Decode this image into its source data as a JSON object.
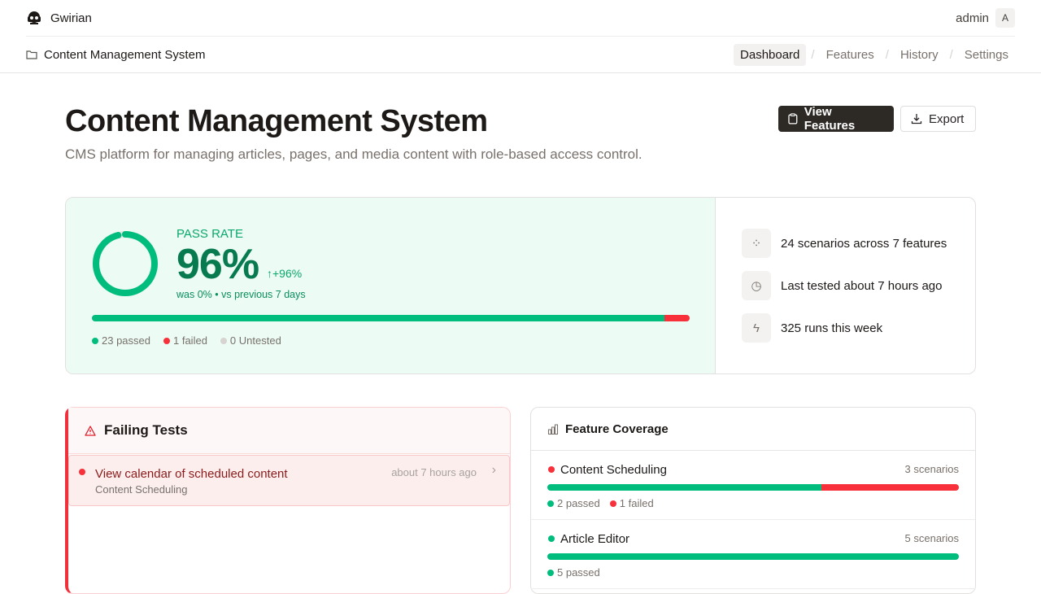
{
  "app": {
    "name": "Gwirian",
    "user": "admin",
    "avatar_initial": "A"
  },
  "breadcrumb": {
    "project": "Content Management System"
  },
  "nav": {
    "items": [
      {
        "label": "Dashboard",
        "active": true
      },
      {
        "label": "Features",
        "active": false
      },
      {
        "label": "History",
        "active": false
      },
      {
        "label": "Settings",
        "active": false
      }
    ],
    "separator": "/"
  },
  "page": {
    "title": "Content Management System",
    "description": "CMS platform for managing articles, pages, and media content with role-based access control.",
    "view_features_label": "View Features",
    "export_label": "Export"
  },
  "pass_rate": {
    "label": "PASS RATE",
    "value": "96%",
    "percent": 96,
    "delta": "+96%",
    "comparison": "was 0% • vs previous 7 days",
    "passed": 23,
    "failed": 1,
    "untested": 0,
    "passed_label": "23 passed",
    "failed_label": "1 failed",
    "untested_label": "0 Untested"
  },
  "stats": [
    {
      "icon": "grid-icon",
      "text": "24 scenarios across 7 features"
    },
    {
      "icon": "clock-icon",
      "text": "Last tested about 7 hours ago"
    },
    {
      "icon": "zap-icon",
      "text": "325 runs this week"
    }
  ],
  "failing": {
    "title": "Failing Tests",
    "items": [
      {
        "name": "View calendar of scheduled content",
        "feature": "Content Scheduling",
        "time": "about 7 hours ago"
      }
    ]
  },
  "coverage": {
    "title": "Feature Coverage",
    "features": [
      {
        "name": "Content Scheduling",
        "scenarios": "3 scenarios",
        "passed": 2,
        "failed": 1,
        "passed_label": "2 passed",
        "failed_label": "1 failed",
        "status": "failed"
      },
      {
        "name": "Article Editor",
        "scenarios": "5 scenarios",
        "passed": 5,
        "failed": 0,
        "passed_label": "5 passed",
        "failed_label": "",
        "status": "passed"
      }
    ]
  },
  "colors": {
    "pass": "#00bd7e",
    "fail": "#f8303a",
    "untested": "#d6d3d1",
    "dark": "#2d2a26"
  }
}
